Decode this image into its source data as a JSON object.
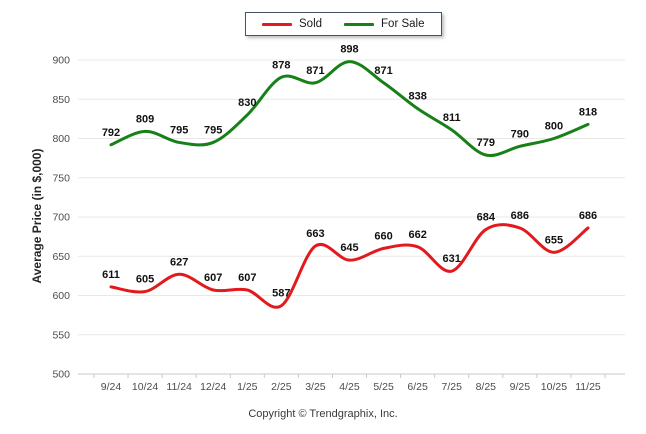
{
  "chart_data": {
    "type": "line",
    "title": "",
    "ylabel": "Average Price (in $,000)",
    "xlabel": "",
    "ylim": [
      500,
      900
    ],
    "yticks": [
      500,
      550,
      600,
      650,
      700,
      750,
      800,
      850,
      900
    ],
    "grid": "horizontal",
    "legend_position": "top-center",
    "categories": [
      "9/24",
      "10/24",
      "11/24",
      "12/24",
      "1/25",
      "2/25",
      "3/25",
      "4/25",
      "5/25",
      "6/25",
      "7/25",
      "8/25",
      "9/25",
      "10/25",
      "11/25"
    ],
    "series": [
      {
        "name": "Sold",
        "color": "#e21a1d",
        "values": [
          611,
          605,
          627,
          607,
          607,
          587,
          663,
          645,
          660,
          662,
          631,
          684,
          686,
          655,
          686
        ]
      },
      {
        "name": "For Sale",
        "color": "#178017",
        "values": [
          792,
          809,
          795,
          795,
          830,
          878,
          871,
          898,
          871,
          838,
          811,
          779,
          790,
          800,
          818
        ]
      }
    ],
    "colors": {
      "gridline": "#e8e8e8",
      "axis_line": "#c9c9c9",
      "tick_label": "#4c4c4c",
      "data_label": "#111111"
    },
    "footer": "Copyright © Trendgraphix, Inc."
  }
}
